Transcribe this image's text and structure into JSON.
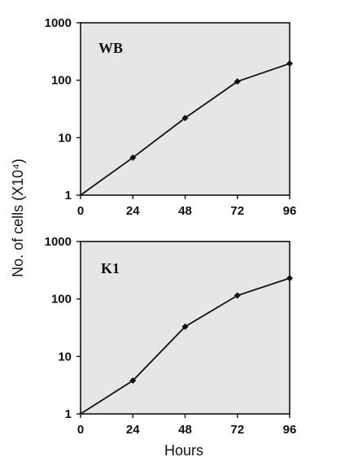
{
  "chart_data": [
    {
      "type": "line",
      "panel_label": "WB",
      "x": [
        0,
        24,
        48,
        72,
        96
      ],
      "series": [
        {
          "values": [
            1,
            4.5,
            22,
            95,
            195
          ]
        }
      ],
      "x_ticks": [
        "0",
        "24",
        "48",
        "72",
        "96"
      ],
      "y_ticks": [
        "1",
        "10",
        "100",
        "1000"
      ],
      "xlim": [
        0,
        96
      ],
      "ylim": [
        1,
        1000
      ],
      "y_scale": "log",
      "grid": false
    },
    {
      "type": "line",
      "panel_label": "K1",
      "x": [
        0,
        24,
        48,
        72,
        96
      ],
      "series": [
        {
          "values": [
            1,
            3.8,
            33,
            115,
            230
          ]
        }
      ],
      "x_ticks": [
        "0",
        "24",
        "48",
        "72",
        "96"
      ],
      "y_ticks": [
        "1",
        "10",
        "100",
        "1000"
      ],
      "xlim": [
        0,
        96
      ],
      "ylim": [
        1,
        1000
      ],
      "y_scale": "log",
      "grid": false
    }
  ],
  "shared": {
    "ylabel": "No. of cells (X10⁴)",
    "xlabel": "Hours"
  },
  "style": {
    "plot_background": "#e6e6e6",
    "line_color": "#111111"
  }
}
